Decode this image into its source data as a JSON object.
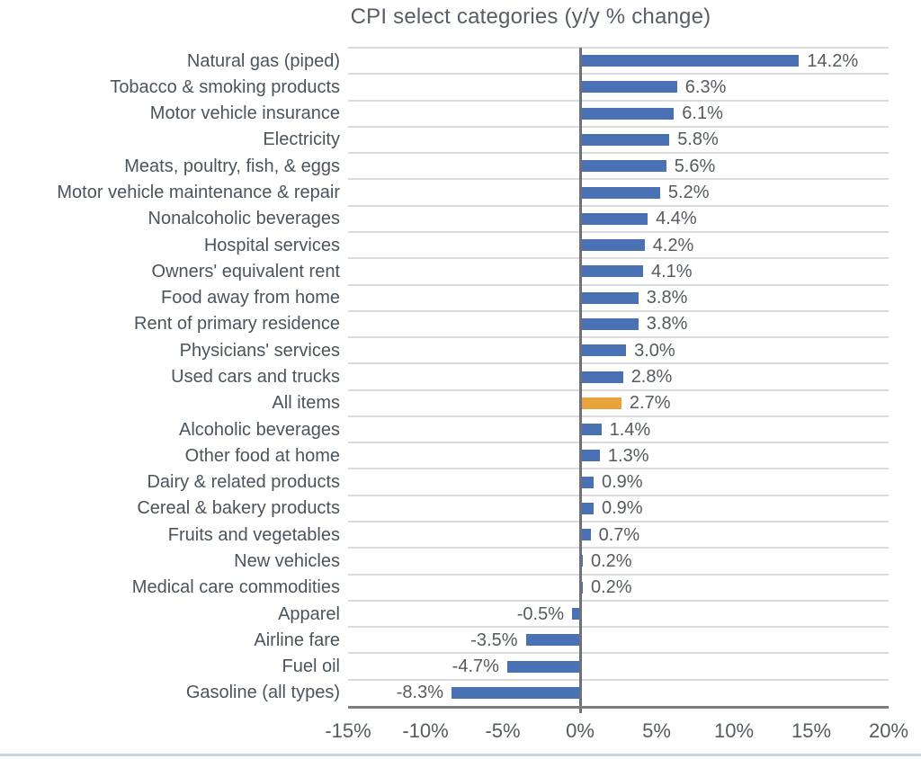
{
  "colors": {
    "bar": "#4A71B4",
    "highlight": "#E9A33C",
    "gridline": "#DBDBDB",
    "zero_line": "#6E7276",
    "axis_line": "#7C7C7C",
    "title_text": "#585E66",
    "category_text": "#4B545D",
    "value_text": "#555B61",
    "tick_text": "#555B61",
    "bottom_rule": "#C4D6E9",
    "background": "#FFFFFF"
  },
  "chart_data": {
    "type": "bar",
    "orientation": "horizontal",
    "title": "CPI select categories (y/y % change)",
    "categories": [
      "Natural gas (piped)",
      "Tobacco & smoking products",
      "Motor vehicle insurance",
      "Electricity",
      "Meats, poultry, fish, & eggs",
      "Motor vehicle maintenance & repair",
      "Nonalcoholic beverages",
      "Hospital services",
      "Owners' equivalent rent",
      "Food away from home",
      "Rent of primary residence",
      "Physicians' services",
      "Used cars and trucks",
      "All items",
      "Alcoholic beverages",
      "Other food at home",
      "Dairy & related products",
      "Cereal & bakery products",
      "Fruits and vegetables",
      "New vehicles",
      "Medical care commodities",
      "Apparel",
      "Airline fare",
      "Fuel oil",
      "Gasoline (all types)"
    ],
    "values": [
      14.2,
      6.3,
      6.1,
      5.8,
      5.6,
      5.2,
      4.4,
      4.2,
      4.1,
      3.8,
      3.8,
      3.0,
      2.8,
      2.7,
      1.4,
      1.3,
      0.9,
      0.9,
      0.7,
      0.2,
      0.2,
      -0.5,
      -3.5,
      -4.7,
      -8.3
    ],
    "value_labels": [
      "14.2%",
      "6.3%",
      "6.1%",
      "5.8%",
      "5.6%",
      "5.2%",
      "4.4%",
      "4.2%",
      "4.1%",
      "3.8%",
      "3.8%",
      "3.0%",
      "2.8%",
      "2.7%",
      "1.4%",
      "1.3%",
      "0.9%",
      "0.9%",
      "0.7%",
      "0.2%",
      "0.2%",
      "-0.5%",
      "-3.5%",
      "-4.7%",
      "-8.3%"
    ],
    "highlight_category": "All items",
    "highlight_index": 13,
    "x_ticks": [
      "-15%",
      "-10%",
      "-5%",
      "0%",
      "5%",
      "10%",
      "15%",
      "20%"
    ],
    "x_tick_values": [
      -15,
      -10,
      -5,
      0,
      5,
      10,
      15,
      20
    ],
    "xlim": [
      -15,
      20
    ],
    "grid": "horizontal row separators only",
    "legend": "none"
  }
}
